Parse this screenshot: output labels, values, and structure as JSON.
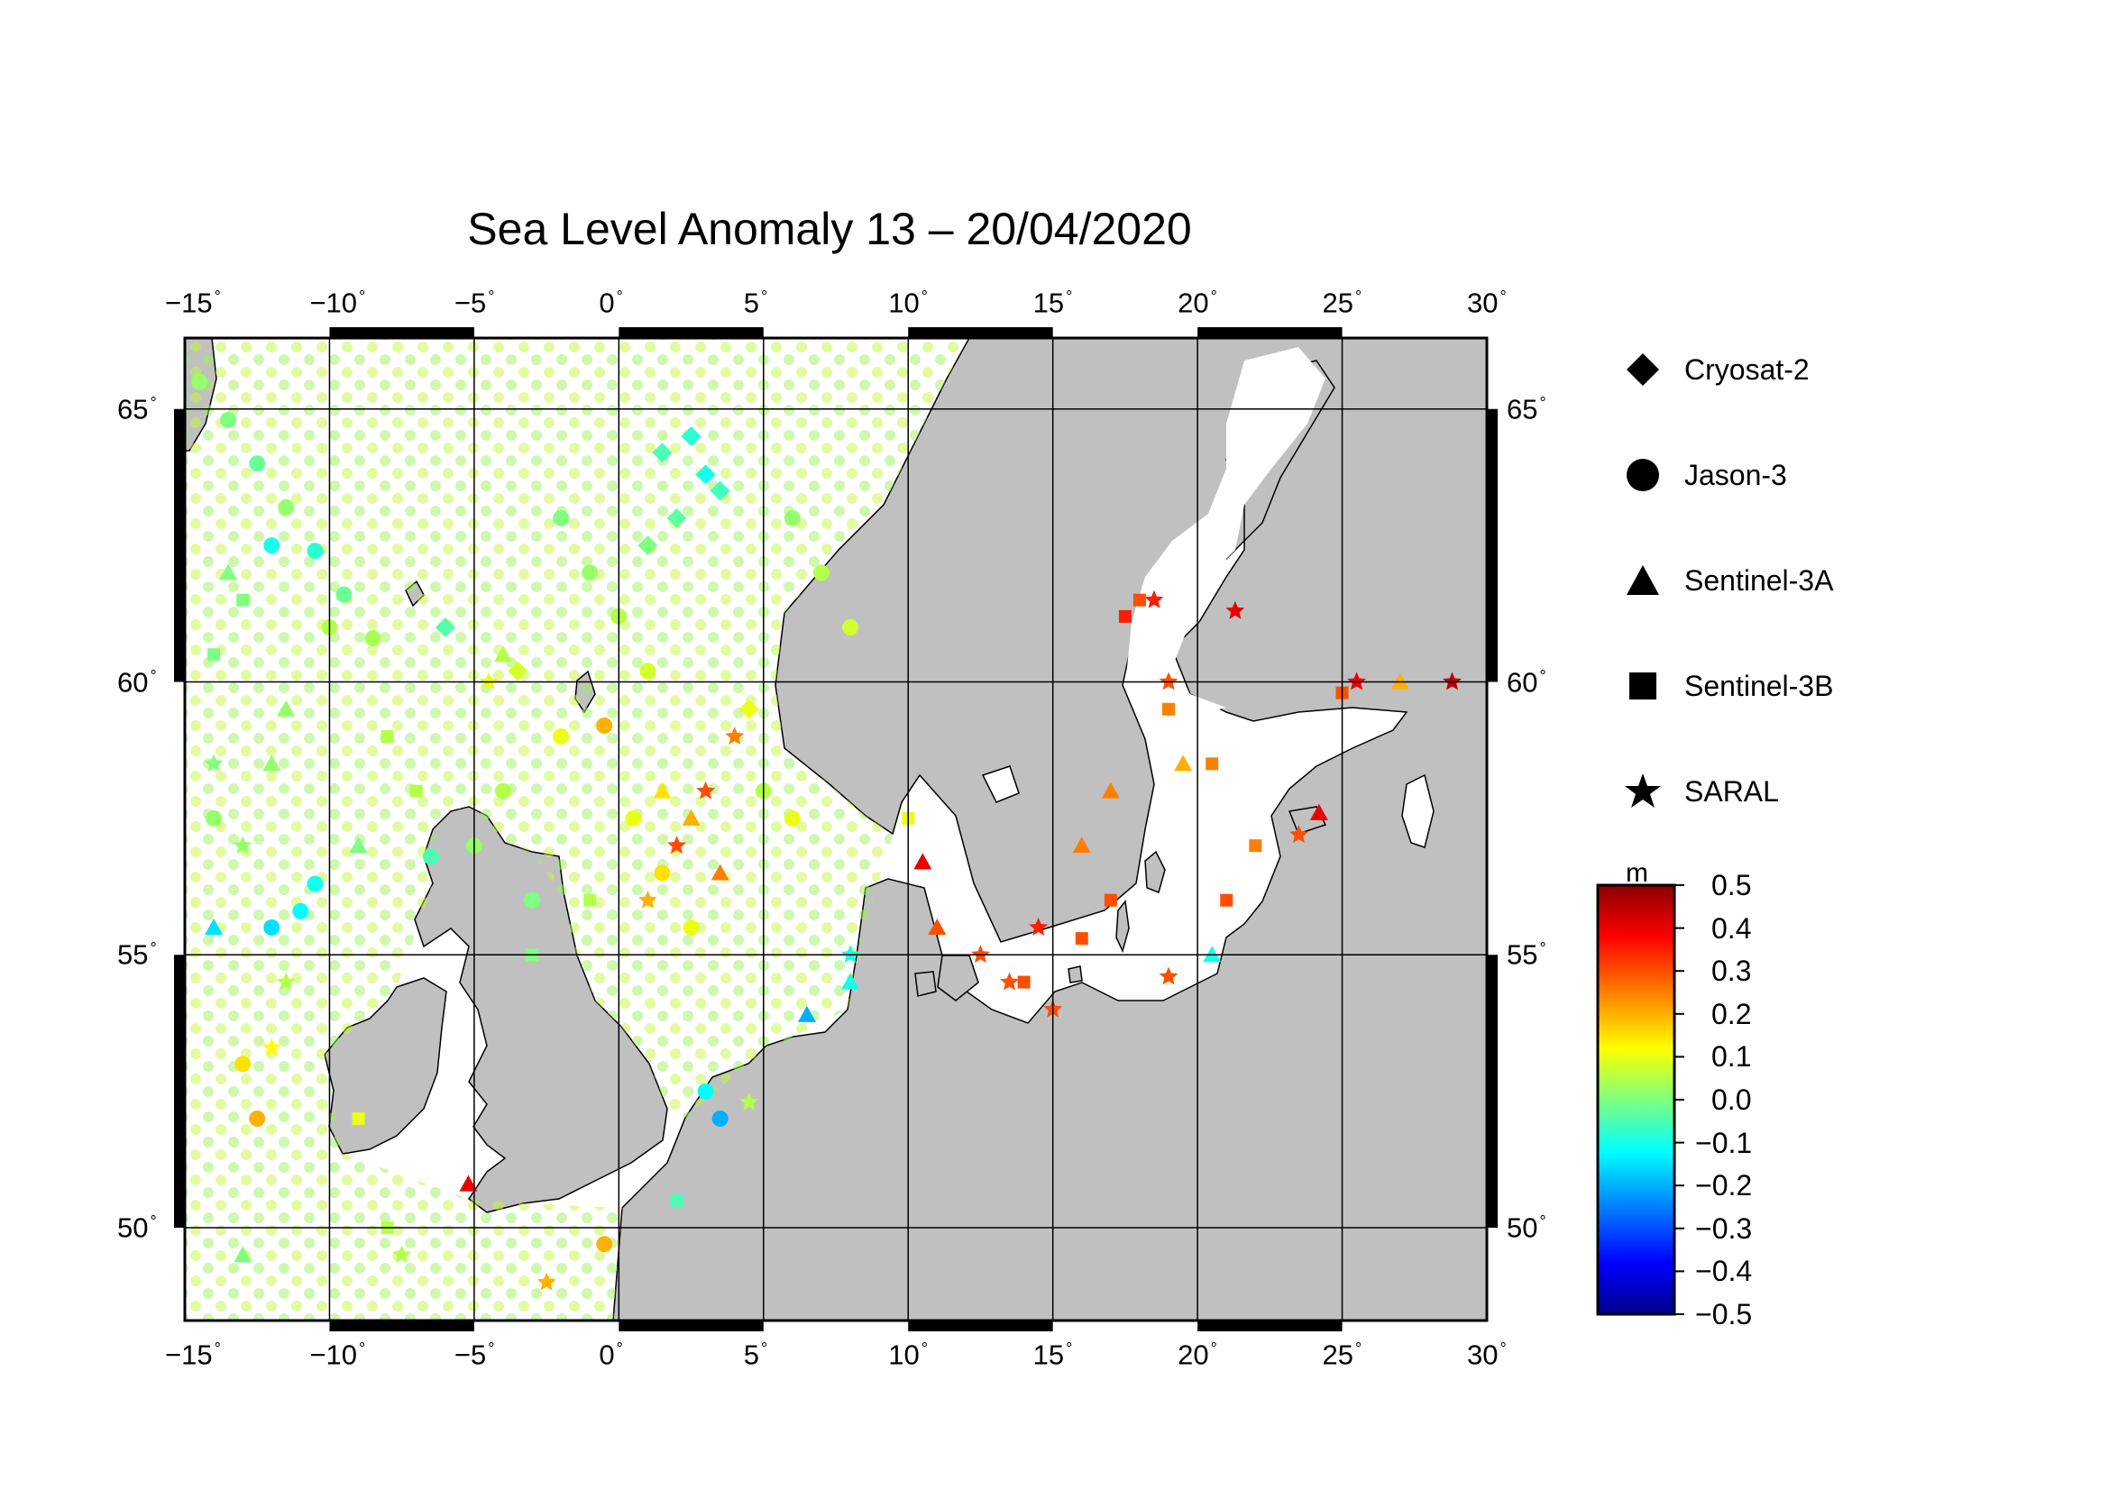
{
  "title": "Sea Level Anomaly 13 – 20/04/2020",
  "map": {
    "lon_range": [
      -15,
      30
    ],
    "lat_range": [
      48.3,
      66.3
    ],
    "lon_ticks": [
      "−15",
      "−10",
      "−5",
      "0",
      "5",
      "10",
      "15",
      "20",
      "25",
      "30"
    ],
    "lat_ticks": [
      "50",
      "55",
      "60",
      "65"
    ],
    "land_color": "#c0c0c0",
    "ocean_color": "#ffffff",
    "gridlines": true
  },
  "legend": {
    "items": [
      {
        "label": "Cryosat-2",
        "icon": "diamond-icon"
      },
      {
        "label": "Jason-3",
        "icon": "circle-icon"
      },
      {
        "label": "Sentinel-3A",
        "icon": "triangle-icon"
      },
      {
        "label": "Sentinel-3B",
        "icon": "square-icon"
      },
      {
        "label": "SARAL",
        "icon": "star-icon"
      }
    ]
  },
  "colorbar": {
    "unit": "m",
    "ticks": [
      "0.5",
      "0.4",
      "0.3",
      "0.2",
      "0.1",
      "0.0",
      "−0.1",
      "−0.2",
      "−0.3",
      "−0.4",
      "−0.5"
    ],
    "colors": [
      "#8b0000",
      "#ff0000",
      "#ff7f00",
      "#ffff00",
      "#7fff7f",
      "#00ffff",
      "#007fff",
      "#0000ff",
      "#00008b"
    ]
  },
  "chart_data": {
    "type": "scatter",
    "title": "Sea Level Anomaly 13 – 20/04/2020",
    "x_range": [
      -15,
      30
    ],
    "y_range": [
      48.3,
      66.3
    ],
    "value_range": [
      -0.5,
      0.5
    ],
    "series": [
      {
        "name": "Cryosat-2",
        "points": [
          [
            1.5,
            64.2,
            -0.05
          ],
          [
            2.5,
            64.5,
            -0.08
          ],
          [
            3.0,
            63.8,
            -0.1
          ],
          [
            3.5,
            63.5,
            -0.06
          ],
          [
            2.0,
            63.0,
            -0.03
          ],
          [
            1.0,
            62.5,
            0.0
          ],
          [
            -6.0,
            61.0,
            -0.04
          ],
          [
            -3.5,
            60.2,
            0.08
          ],
          [
            4.5,
            59.5,
            0.1
          ]
        ]
      },
      {
        "name": "Jason-3",
        "points": [
          [
            -14.5,
            65.5,
            0.02
          ],
          [
            -13.5,
            64.8,
            0.0
          ],
          [
            -12.5,
            64.0,
            -0.02
          ],
          [
            -11.5,
            63.2,
            0.02
          ],
          [
            -10.5,
            62.4,
            -0.08
          ],
          [
            -9.5,
            61.6,
            -0.02
          ],
          [
            -8.5,
            60.8,
            0.04
          ],
          [
            -12.0,
            62.5,
            -0.1
          ],
          [
            -10.0,
            61.0,
            0.05
          ],
          [
            -14.0,
            57.5,
            0.02
          ],
          [
            -12.0,
            55.5,
            -0.15
          ],
          [
            -11.0,
            55.8,
            -0.12
          ],
          [
            -10.5,
            56.3,
            -0.1
          ],
          [
            -6.5,
            56.8,
            -0.05
          ],
          [
            -2.0,
            59.0,
            0.1
          ],
          [
            -0.5,
            59.2,
            0.2
          ],
          [
            -2.0,
            63.0,
            0.0
          ],
          [
            -1.0,
            62.0,
            0.02
          ],
          [
            0.0,
            61.2,
            0.05
          ],
          [
            1.0,
            60.2,
            0.08
          ],
          [
            6.0,
            63.0,
            0.02
          ],
          [
            7.0,
            62.0,
            0.05
          ],
          [
            8.0,
            61.0,
            0.08
          ],
          [
            3.5,
            52.0,
            -0.2
          ],
          [
            3.0,
            52.5,
            -0.12
          ],
          [
            -0.5,
            49.7,
            0.2
          ],
          [
            -13.0,
            53.0,
            0.15
          ],
          [
            -12.5,
            52.0,
            0.2
          ],
          [
            2.5,
            55.5,
            0.1
          ],
          [
            1.5,
            56.5,
            0.15
          ],
          [
            0.5,
            57.5,
            0.1
          ],
          [
            -4.0,
            58.0,
            0.05
          ],
          [
            -5.0,
            57.0,
            0.02
          ],
          [
            -3.0,
            56.0,
            0.0
          ],
          [
            5.0,
            58.0,
            0.05
          ],
          [
            6.0,
            57.5,
            0.1
          ]
        ]
      },
      {
        "name": "Sentinel-3A",
        "points": [
          [
            -13.5,
            62.0,
            0.0
          ],
          [
            -12.0,
            58.5,
            0.02
          ],
          [
            -14.0,
            55.5,
            -0.15
          ],
          [
            -11.5,
            59.5,
            0.02
          ],
          [
            -9.0,
            57.0,
            0.0
          ],
          [
            -4.0,
            60.5,
            0.05
          ],
          [
            1.5,
            58.0,
            0.15
          ],
          [
            2.5,
            57.5,
            0.2
          ],
          [
            3.5,
            56.5,
            0.25
          ],
          [
            10.5,
            56.7,
            0.4
          ],
          [
            11.0,
            55.5,
            0.3
          ],
          [
            19.5,
            58.5,
            0.2
          ],
          [
            24.2,
            57.6,
            0.4
          ],
          [
            20.5,
            55.0,
            -0.1
          ],
          [
            6.5,
            53.9,
            -0.2
          ],
          [
            8.0,
            54.5,
            -0.1
          ],
          [
            -5.2,
            50.8,
            0.4
          ],
          [
            -13.0,
            49.5,
            0.0
          ],
          [
            16.0,
            57.0,
            0.25
          ],
          [
            17.0,
            58.0,
            0.25
          ],
          [
            27.0,
            60.0,
            0.2
          ]
        ]
      },
      {
        "name": "Sentinel-3B",
        "points": [
          [
            -14.0,
            60.5,
            0.0
          ],
          [
            -13.0,
            61.5,
            0.0
          ],
          [
            -8.0,
            59.0,
            0.05
          ],
          [
            -7.0,
            58.0,
            0.05
          ],
          [
            -3.0,
            55.0,
            0.0
          ],
          [
            -1.0,
            56.0,
            0.05
          ],
          [
            18.0,
            61.5,
            0.3
          ],
          [
            17.5,
            61.2,
            0.35
          ],
          [
            19.0,
            59.5,
            0.25
          ],
          [
            20.5,
            58.5,
            0.25
          ],
          [
            22.0,
            57.0,
            0.25
          ],
          [
            21.0,
            56.0,
            0.3
          ],
          [
            17.0,
            56.0,
            0.3
          ],
          [
            16.0,
            55.3,
            0.3
          ],
          [
            14.0,
            54.5,
            0.3
          ],
          [
            10.0,
            57.5,
            0.1
          ],
          [
            25.0,
            59.8,
            0.3
          ],
          [
            -9.0,
            52.0,
            0.1
          ],
          [
            -8.0,
            50.0,
            0.05
          ],
          [
            2.0,
            50.5,
            -0.05
          ]
        ]
      },
      {
        "name": "SARAL",
        "points": [
          [
            -14.0,
            58.5,
            0.0
          ],
          [
            -13.0,
            57.0,
            0.02
          ],
          [
            -11.5,
            54.5,
            0.05
          ],
          [
            -12.0,
            53.3,
            0.12
          ],
          [
            -4.5,
            60.0,
            0.1
          ],
          [
            1.0,
            56.0,
            0.2
          ],
          [
            2.0,
            57.0,
            0.3
          ],
          [
            3.0,
            58.0,
            0.3
          ],
          [
            4.0,
            59.0,
            0.25
          ],
          [
            12.5,
            55.0,
            0.3
          ],
          [
            13.5,
            54.5,
            0.3
          ],
          [
            14.5,
            55.5,
            0.35
          ],
          [
            18.5,
            61.5,
            0.35
          ],
          [
            19.0,
            60.0,
            0.3
          ],
          [
            21.3,
            61.3,
            0.4
          ],
          [
            25.5,
            60.0,
            0.4
          ],
          [
            28.8,
            60.0,
            0.45
          ],
          [
            23.5,
            57.2,
            0.3
          ],
          [
            19.0,
            54.6,
            0.3
          ],
          [
            15.0,
            54.0,
            0.3
          ],
          [
            -2.5,
            49.0,
            0.2
          ],
          [
            -7.5,
            49.5,
            0.05
          ],
          [
            4.5,
            52.3,
            0.05
          ],
          [
            8.0,
            55.0,
            -0.1
          ]
        ]
      }
    ]
  }
}
